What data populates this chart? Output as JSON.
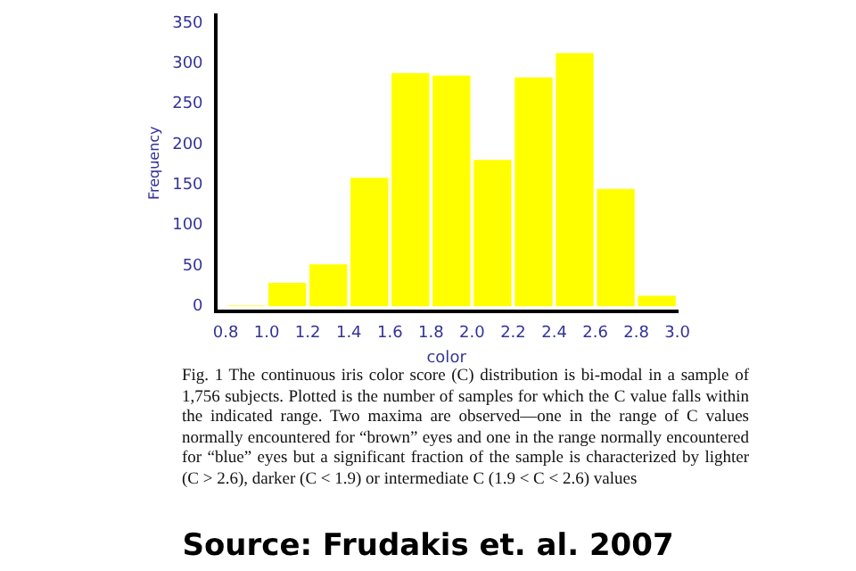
{
  "chart_data": {
    "type": "histogram",
    "xlabel": "color",
    "ylabel": "Frequency",
    "bins": [
      0.8,
      1.0,
      1.2,
      1.4,
      1.6,
      1.8,
      2.0,
      2.2,
      2.4,
      2.6,
      2.8,
      3.0
    ],
    "values": [
      1,
      29,
      52,
      159,
      288,
      285,
      181,
      283,
      313,
      145,
      13
    ],
    "color": "#ffff00",
    "xlim": [
      0.75,
      3.0
    ],
    "xticks": [
      0.8,
      {
        "value": 1,
        "label": "1.0"
      },
      1.2,
      1.4,
      1.6,
      1.8,
      {
        "value": 2,
        "label": "2.0"
      },
      2.2,
      2.4,
      2.6,
      2.8,
      {
        "value": 3,
        "label": "3.0"
      }
    ],
    "ylim": [
      -6,
      360
    ],
    "yticks": [
      0,
      50,
      100,
      150,
      200,
      250,
      300,
      350
    ],
    "grid": false,
    "legend": false,
    "annotations": [
      "Fig. 1  The continuous iris color score (C) distribution is bi-modal in a sample of 1,756 subjects. Plotted is the number of samples for which the C value falls within the indicated range. Two maxima are observed—one in the range of C values normally encountered for “brown” eyes and one in the range normally encountered for “blue” eyes but a significant fraction of the sample is characterized by lighter (C > 2.6), darker (C < 1.9) or intermediate C (1.9 < C < 2.6) values",
      "Source: Frudakis et. al. 2007"
    ]
  }
}
